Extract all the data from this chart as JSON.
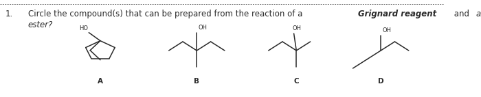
{
  "title_number": "1.",
  "q_normal1": "Circle the compound(s) that can be prepared from the reaction of a ",
  "q_bold_italic": "Grignard reagent",
  "q_normal2": " and ",
  "q_italic": "an",
  "q_line2": "ester?",
  "background_color": "#ffffff",
  "text_color": "#2a2a2a",
  "labels": [
    "A",
    "B",
    "C",
    "D"
  ],
  "fig_width": 7.0,
  "fig_height": 1.42,
  "dpi": 100
}
